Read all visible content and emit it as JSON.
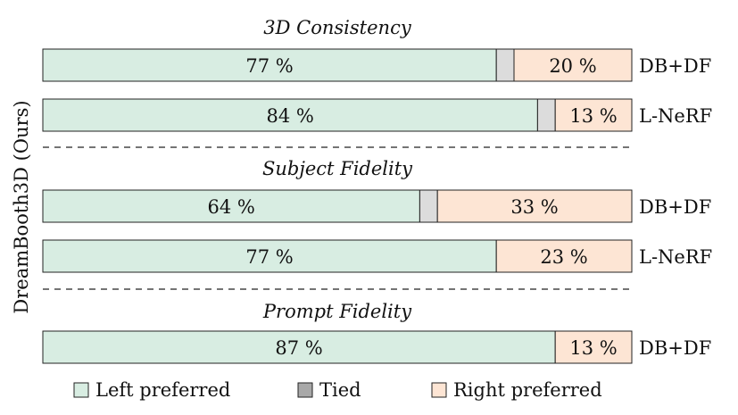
{
  "colors": {
    "left": "#d8ede2",
    "tied": "#dcdcdc",
    "tied_legend": "#a8a8a8",
    "right": "#fde5d4",
    "border": "#222222"
  },
  "y_axis_label": "DreamBooth3D (Ours)",
  "legend": [
    "Left preferred",
    "Tied",
    "Right preferred"
  ],
  "chart_data": {
    "type": "bar",
    "orientation": "horizontal-stacked-percent",
    "xlim": [
      0,
      100
    ],
    "ylabel": "DreamBooth3D (Ours)",
    "legend_position": "bottom",
    "groups": [
      {
        "title": "3D Consistency",
        "rows": [
          {
            "baseline": "DB+DF",
            "left": 77,
            "left_label": "77 %",
            "tied": 3,
            "right": 20,
            "right_label": "20 %"
          },
          {
            "baseline": "L-NeRF",
            "left": 84,
            "left_label": "84 %",
            "tied": 3,
            "right": 13,
            "right_label": "13 %"
          }
        ]
      },
      {
        "title": "Subject Fidelity",
        "rows": [
          {
            "baseline": "DB+DF",
            "left": 64,
            "left_label": "64 %",
            "tied": 3,
            "right": 33,
            "right_label": "33 %"
          },
          {
            "baseline": "L-NeRF",
            "left": 77,
            "left_label": "77 %",
            "tied": 0,
            "right": 23,
            "right_label": "23 %"
          }
        ]
      },
      {
        "title": "Prompt Fidelity",
        "rows": [
          {
            "baseline": "DB+DF",
            "left": 87,
            "left_label": "87 %",
            "tied": 0,
            "right": 13,
            "right_label": "13 %"
          }
        ]
      }
    ]
  }
}
